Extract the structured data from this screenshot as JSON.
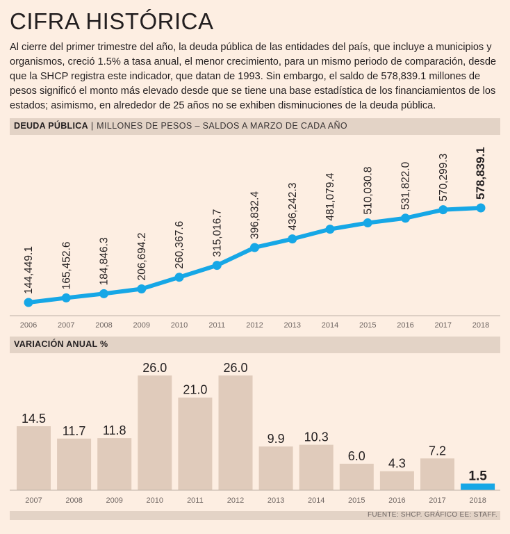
{
  "title": "CIFRA HISTÓRICA",
  "intro": "Al cierre del primer trimestre del año, la deuda pública de las entidades del país, que incluye a municipios y organismos, creció 1.5% a tasa anual, el menor crecimiento, para un mismo periodo de comparación, desde que la SHCP registra este indicador, que datan de 1993. Sin embargo, el saldo de 578,839.1 millones de pesos significó el monto más elevado desde que se tiene una base estadística de los financiamientos de los estados; asimismo, en alrededor de 25 años no se exhiben disminuciones de la deuda pública.",
  "colors": {
    "line": "#16a7e6",
    "bar": "#e0cbbb",
    "highlight": "#16a7e6",
    "band": "#e3d3c6"
  },
  "source": "FUENTE: SHCP.  GRÁFICO EE: STAFF.",
  "chart_data": [
    {
      "type": "line",
      "title": "DEUDA PÚBLICA",
      "subtitle": "MILLONES DE PESOS – SALDOS A MARZO DE CADA AÑO",
      "x": [
        "2006",
        "2007",
        "2008",
        "2009",
        "2010",
        "2011",
        "2012",
        "2013",
        "2014",
        "2015",
        "2016",
        "2017",
        "2018"
      ],
      "values": [
        144449.1,
        165452.6,
        184846.3,
        206694.2,
        260367.6,
        315016.7,
        396832.4,
        436242.3,
        481079.4,
        510030.8,
        531822.0,
        570299.3,
        578839.1
      ],
      "labels": [
        "144,449.1",
        "165,452.6",
        "184,846.3",
        "206,694.2",
        "260,367.6",
        "315,016.7",
        "396,832.4",
        "436,242.3",
        "481,079.4",
        "510,030.8",
        "531,822.0",
        "570,299.3",
        "578,839.1"
      ],
      "highlight_index": 12,
      "ylim": [
        80000,
        620000
      ]
    },
    {
      "type": "bar",
      "title": "VARIACIÓN ANUAL %",
      "categories": [
        "2007",
        "2008",
        "2009",
        "2010",
        "2011",
        "2012",
        "2013",
        "2014",
        "2015",
        "2016",
        "2017",
        "2018"
      ],
      "values": [
        14.5,
        11.7,
        11.8,
        26.0,
        21.0,
        26.0,
        9.9,
        10.3,
        6.0,
        4.3,
        7.2,
        1.5
      ],
      "labels": [
        "14.5",
        "11.7",
        "11.8",
        "26.0",
        "21.0",
        "26.0",
        "9.9",
        "10.3",
        "6.0",
        "4.3",
        "7.2",
        "1.5"
      ],
      "highlight_index": 11,
      "ylim": [
        0,
        26
      ]
    }
  ]
}
